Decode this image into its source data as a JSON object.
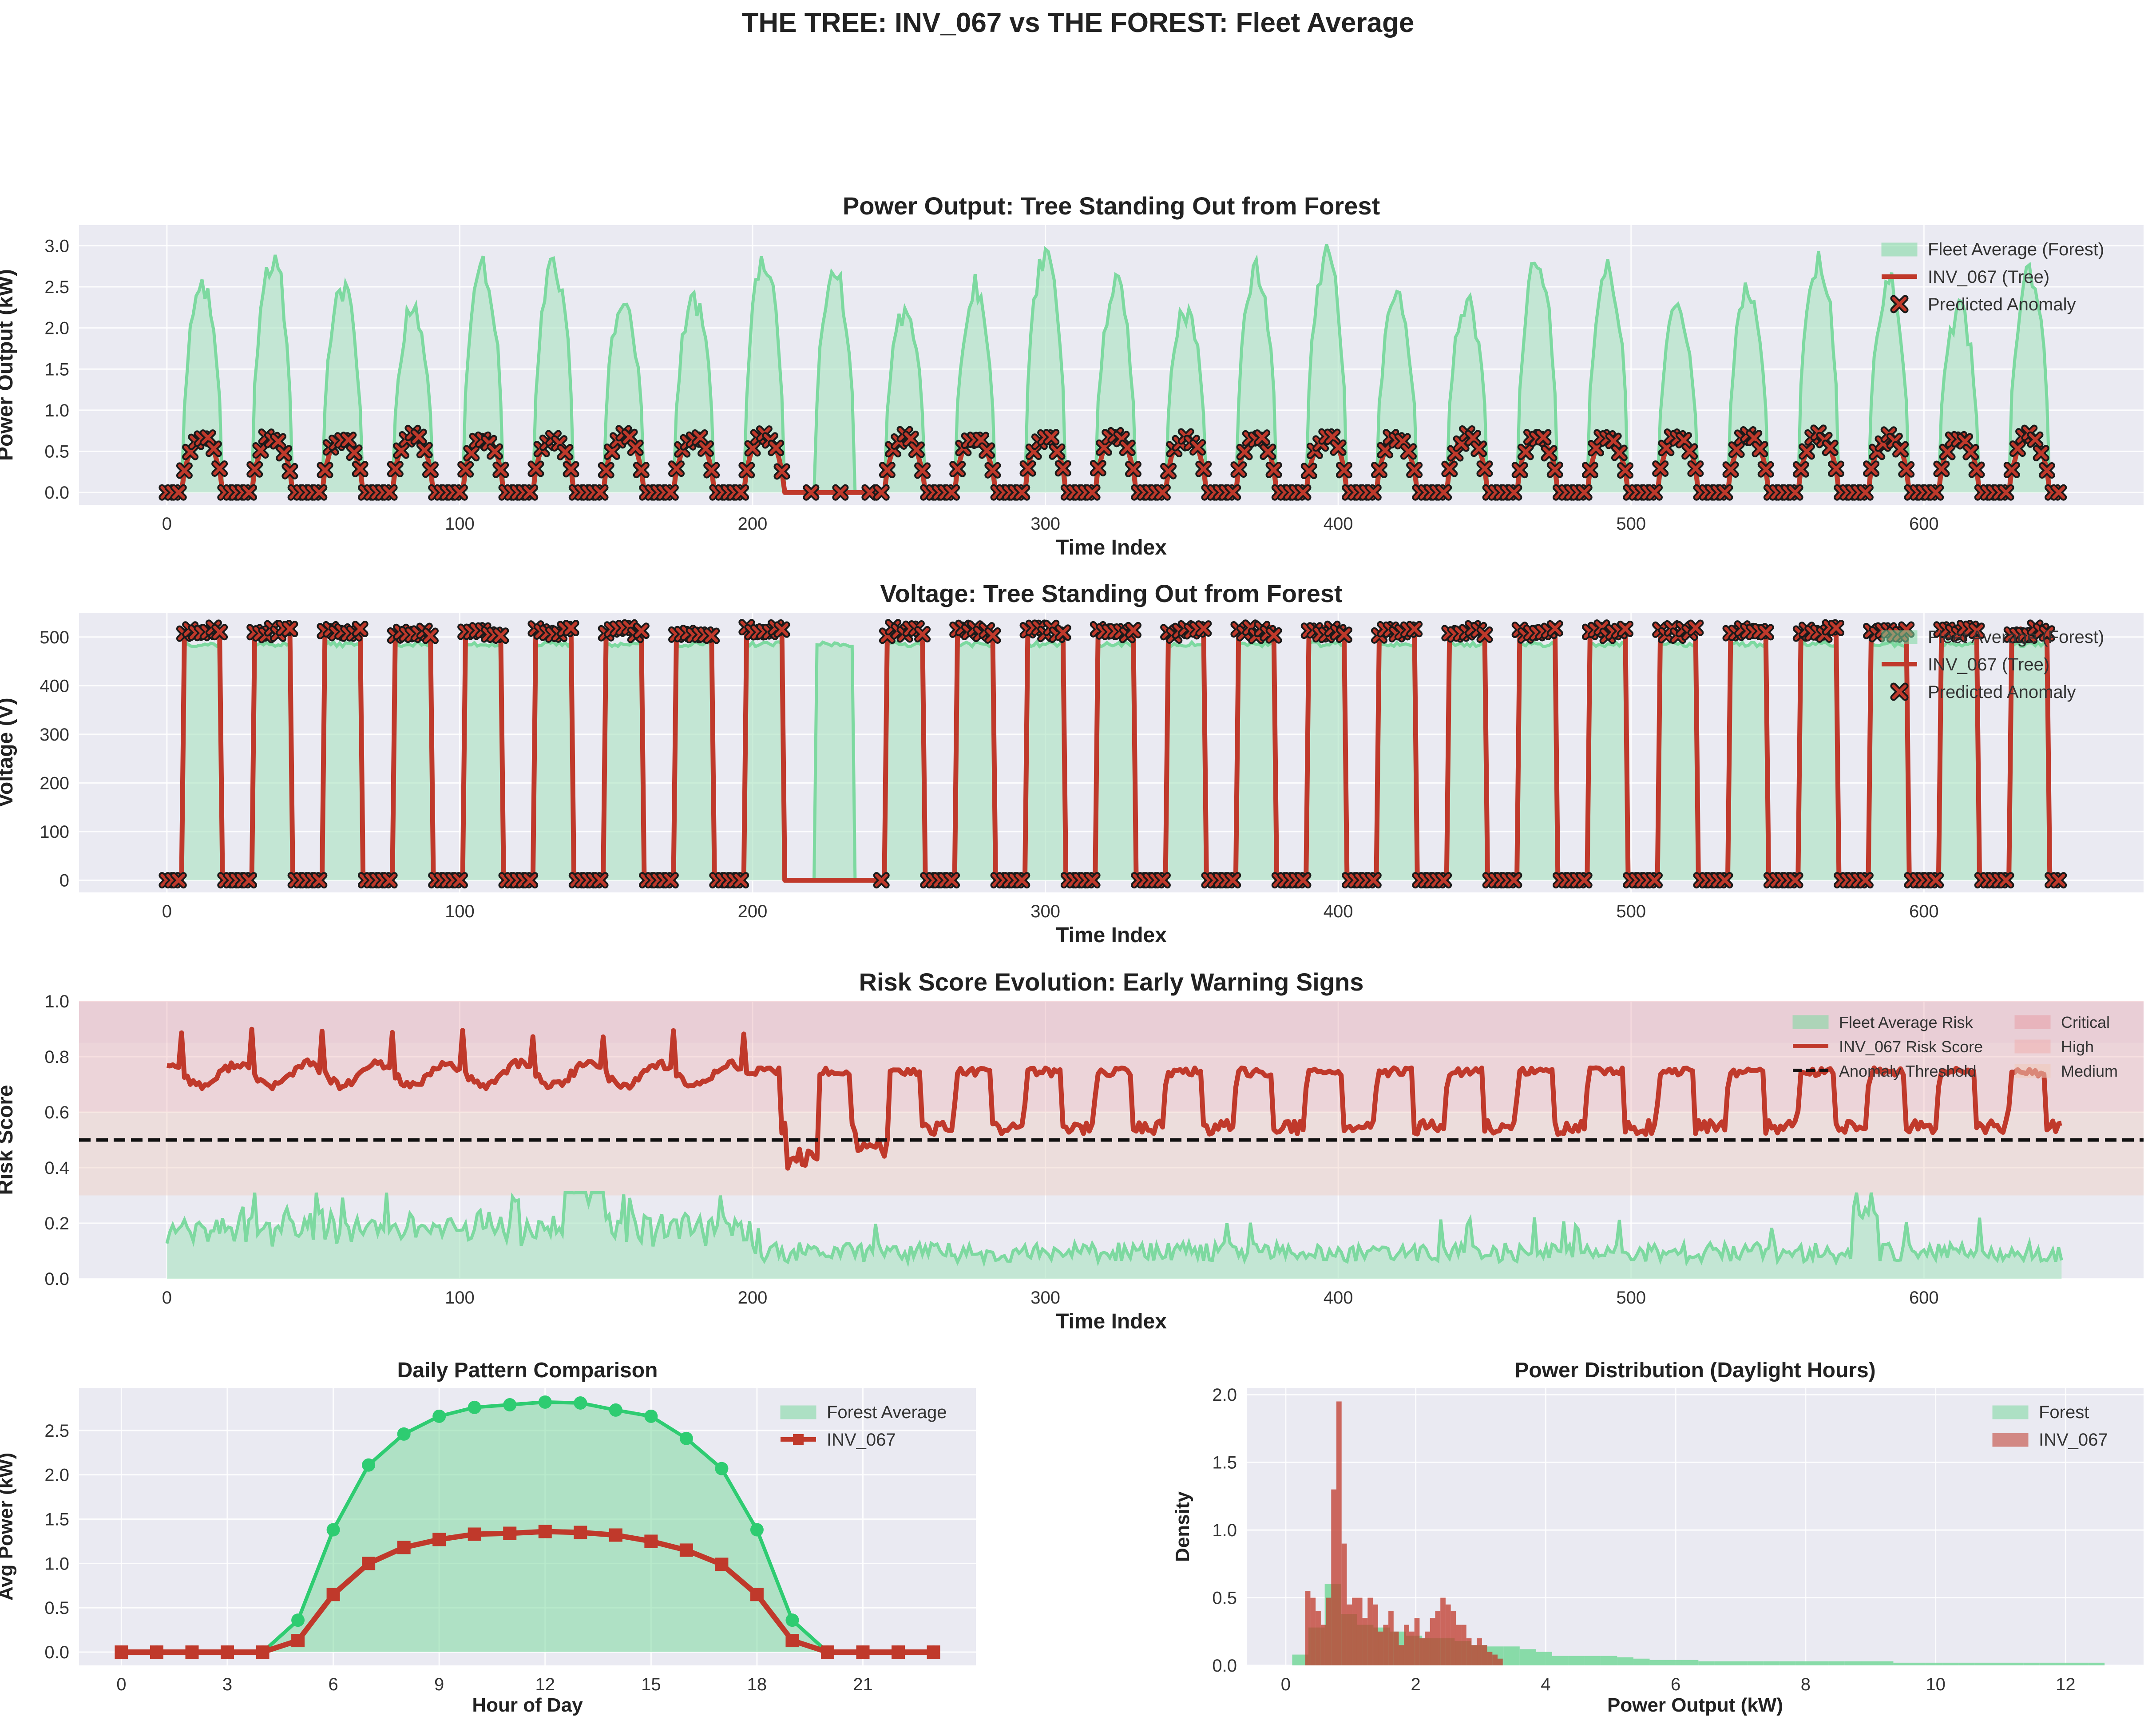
{
  "figure_title": "THE TREE: INV_067 vs THE FOREST: Fleet Average",
  "colors": {
    "forest_line": "#7dd9a0",
    "forest_fill": "#a8e2c0",
    "tree": "#c0392b",
    "tree_marker_edge": "#1a1a1a",
    "forest_dark": "#2ecc71",
    "panel_bg": "#eaeaf2",
    "zone_critical": "#e8a0a8",
    "zone_high": "#f0b0b0",
    "zone_medium": "#f0c8b8"
  },
  "chart_data": [
    {
      "id": "power",
      "type": "line",
      "title": "Power Output: Tree Standing Out from Forest",
      "xlabel": "Time Index",
      "ylabel": "Power Output (kW)",
      "xlim": [
        -30,
        675
      ],
      "ylim": [
        -0.15,
        3.25
      ],
      "xticks": [
        0,
        100,
        200,
        300,
        400,
        500,
        600
      ],
      "yticks": [
        0.0,
        0.5,
        1.0,
        1.5,
        2.0,
        2.5,
        3.0
      ],
      "ytick_labels": [
        "0.0",
        "0.5",
        "1.0",
        "1.5",
        "2.0",
        "2.5",
        "3.0"
      ],
      "n_points": 648,
      "cycles": 27,
      "period": 24,
      "day_hours": [
        5,
        19
      ],
      "forest_peak_kw": 2.8,
      "tree_peak_kw": 0.7,
      "anomaly_gap_x": [
        211,
        243
      ],
      "legend": [
        "Fleet Average (Forest)",
        "INV_067 (Tree)",
        "Predicted Anomaly"
      ]
    },
    {
      "id": "voltage",
      "type": "line",
      "title": "Voltage: Tree Standing Out from Forest",
      "xlabel": "Time Index",
      "ylabel": "Voltage (V)",
      "xlim": [
        -30,
        675
      ],
      "ylim": [
        -25,
        550
      ],
      "xticks": [
        0,
        100,
        200,
        300,
        400,
        500,
        600
      ],
      "yticks": [
        0,
        100,
        200,
        300,
        400,
        500
      ],
      "ytick_labels": [
        "0",
        "100",
        "200",
        "300",
        "400",
        "500"
      ],
      "forest_day_v": 490,
      "tree_day_v": 510,
      "legend": [
        "Fleet Average (Forest)",
        "INV_067 (Tree)",
        "Predicted Anomaly"
      ]
    },
    {
      "id": "risk",
      "type": "line",
      "title": "Risk Score Evolution: Early Warning Signs",
      "xlabel": "Time Index",
      "ylabel": "Risk Score",
      "xlim": [
        -30,
        675
      ],
      "ylim": [
        0.0,
        1.0
      ],
      "xticks": [
        0,
        100,
        200,
        300,
        400,
        500,
        600
      ],
      "yticks": [
        0.0,
        0.2,
        0.4,
        0.6,
        0.8,
        1.0
      ],
      "ytick_labels": [
        "0.0",
        "0.2",
        "0.4",
        "0.6",
        "0.8",
        "1.0"
      ],
      "threshold": 0.5,
      "zones": [
        {
          "name": "Critical",
          "from": 0.85,
          "to": 1.0
        },
        {
          "name": "High",
          "from": 0.6,
          "to": 0.85
        },
        {
          "name": "Medium",
          "from": 0.3,
          "to": 0.6
        }
      ],
      "tree_risk_early": 0.75,
      "tree_risk_late": 0.75,
      "forest_risk_mean": 0.1,
      "legend_left": [
        "Fleet Average Risk",
        "INV_067 Risk Score",
        "Anomaly Threshold"
      ],
      "legend_right": [
        "Critical",
        "High",
        "Medium"
      ]
    },
    {
      "id": "daily",
      "type": "line",
      "title": "Daily Pattern Comparison",
      "xlabel": "Hour of Day",
      "ylabel": "Avg Power (kW)",
      "xlim": [
        -1.2,
        24.2
      ],
      "ylim": [
        -0.15,
        2.98
      ],
      "xticks": [
        0,
        3,
        6,
        9,
        12,
        15,
        18,
        21
      ],
      "yticks": [
        0.0,
        0.5,
        1.0,
        1.5,
        2.0,
        2.5
      ],
      "ytick_labels": [
        "0.0",
        "0.5",
        "1.0",
        "1.5",
        "2.0",
        "2.5"
      ],
      "hours": [
        0,
        1,
        2,
        3,
        4,
        5,
        6,
        7,
        8,
        9,
        10,
        11,
        12,
        13,
        14,
        15,
        16,
        17,
        18,
        19,
        20,
        21,
        22,
        23
      ],
      "series": [
        {
          "name": "Forest Average",
          "values": [
            0,
            0,
            0,
            0,
            0,
            0.36,
            1.38,
            2.11,
            2.46,
            2.66,
            2.76,
            2.79,
            2.82,
            2.81,
            2.73,
            2.66,
            2.41,
            2.07,
            1.38,
            0.36,
            0,
            0,
            0,
            0
          ]
        },
        {
          "name": "INV_067",
          "values": [
            0,
            0,
            0,
            0,
            0,
            0.13,
            0.65,
            1.0,
            1.18,
            1.27,
            1.33,
            1.34,
            1.36,
            1.35,
            1.32,
            1.25,
            1.15,
            0.99,
            0.65,
            0.13,
            0,
            0,
            0,
            0
          ]
        }
      ]
    },
    {
      "id": "distribution",
      "type": "bar",
      "title": "Power Distribution (Daylight Hours)",
      "xlabel": "Power Output (kW)",
      "ylabel": "Density",
      "xlim": [
        -0.6,
        13.2
      ],
      "ylim": [
        0,
        2.05
      ],
      "xticks": [
        0,
        2,
        4,
        6,
        8,
        10,
        12
      ],
      "yticks": [
        0.0,
        0.5,
        1.0,
        1.5,
        2.0
      ],
      "ytick_labels": [
        "0.0",
        "0.5",
        "1.0",
        "1.5",
        "2.0"
      ],
      "series": [
        {
          "name": "Forest",
          "bin_width": 0.25,
          "x_start": 0.1,
          "values": [
            0.08,
            0.28,
            0.6,
            0.38,
            0.3,
            0.28,
            0.25,
            0.22,
            0.2,
            0.2,
            0.18,
            0.15,
            0.14,
            0.14,
            0.12,
            0.1,
            0.07,
            0.07,
            0.07,
            0.07,
            0.06,
            0.05,
            0.04,
            0.04,
            0.04,
            0.03,
            0.03,
            0.03,
            0.03,
            0.03,
            0.03,
            0.03,
            0.03,
            0.03,
            0.03,
            0.03,
            0.03,
            0.02,
            0.02,
            0.02,
            0.02,
            0.02,
            0.02,
            0.02,
            0.02,
            0.02,
            0.02,
            0.02,
            0.02,
            0.02
          ]
        },
        {
          "name": "INV_067",
          "bin_width": 0.08,
          "x_start": 0.3,
          "values": [
            0.55,
            0.5,
            0.4,
            0.3,
            0.5,
            1.3,
            1.95,
            0.9,
            0.45,
            0.5,
            0.5,
            0.35,
            0.5,
            0.45,
            0.25,
            0.3,
            0.4,
            0.25,
            0.15,
            0.3,
            0.25,
            0.35,
            0.2,
            0.25,
            0.35,
            0.4,
            0.5,
            0.45,
            0.4,
            0.3,
            0.3,
            0.2,
            0.15,
            0.2,
            0.15,
            0.1,
            0.08,
            0.05
          ]
        }
      ]
    }
  ]
}
